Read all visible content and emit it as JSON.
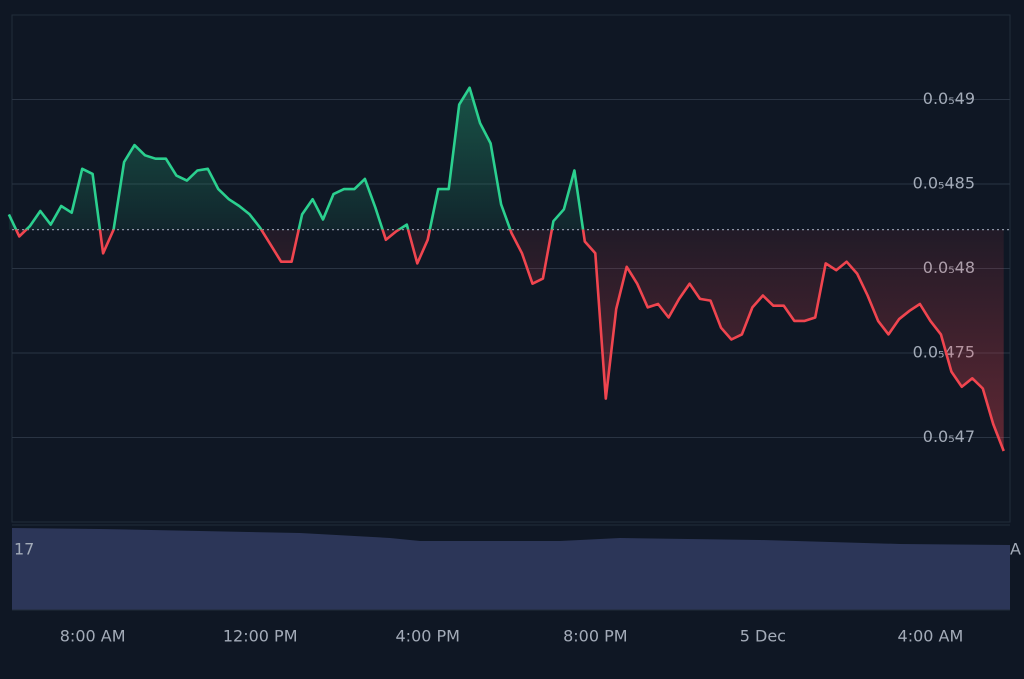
{
  "chart_data": {
    "type": "baseline_line",
    "x": [
      8,
      9,
      10,
      11,
      12,
      13,
      14,
      15,
      16,
      17,
      18,
      19,
      20,
      21,
      22,
      23,
      24,
      25,
      26,
      27,
      28,
      29,
      30,
      31,
      32,
      33,
      34,
      35,
      36,
      37,
      38,
      39,
      40,
      41,
      42,
      43,
      44,
      45,
      46,
      47,
      48,
      49,
      50,
      51,
      52,
      53,
      54,
      55,
      56,
      57,
      58,
      59,
      60,
      61,
      62,
      63,
      64,
      65,
      66,
      67,
      68,
      69,
      70,
      71,
      72,
      73,
      74,
      75,
      76,
      77,
      78,
      79,
      80,
      81,
      82,
      83,
      84,
      85,
      86,
      87,
      88,
      89,
      90,
      91,
      92,
      93,
      94,
      95,
      96,
      97,
      98,
      99,
      100,
      101,
      102,
      103
    ],
    "values": [
      4.832e-06,
      4.819e-06,
      4.825e-06,
      4.834e-06,
      4.826e-06,
      4.837e-06,
      4.833e-06,
      4.859e-06,
      4.856e-06,
      4.809e-06,
      4.823e-06,
      4.863e-06,
      4.873e-06,
      4.867e-06,
      4.865e-06,
      4.865e-06,
      4.855e-06,
      4.852e-06,
      4.858e-06,
      4.859e-06,
      4.847e-06,
      4.841e-06,
      4.837e-06,
      4.832e-06,
      4.824e-06,
      4.814e-06,
      4.804e-06,
      4.804e-06,
      4.832e-06,
      4.841e-06,
      4.829e-06,
      4.844e-06,
      4.847e-06,
      4.847e-06,
      4.853e-06,
      4.836e-06,
      4.817e-06,
      4.822e-06,
      4.826e-06,
      4.803e-06,
      4.817e-06,
      4.847e-06,
      4.847e-06,
      4.897e-06,
      4.907e-06,
      4.886e-06,
      4.874e-06,
      4.838e-06,
      4.821e-06,
      4.809e-06,
      4.791e-06,
      4.794e-06,
      4.828e-06,
      4.835e-06,
      4.858e-06,
      4.816e-06,
      4.809e-06,
      4.723e-06,
      4.776e-06,
      4.801e-06,
      4.791e-06,
      4.777e-06,
      4.779e-06,
      4.771e-06,
      4.782e-06,
      4.791e-06,
      4.782e-06,
      4.781e-06,
      4.765e-06,
      4.758e-06,
      4.761e-06,
      4.777e-06,
      4.784e-06,
      4.778e-06,
      4.778e-06,
      4.769e-06,
      4.769e-06,
      4.771e-06,
      4.803e-06,
      4.799e-06,
      4.804e-06,
      4.797e-06,
      4.784e-06,
      4.769e-06,
      4.761e-06,
      4.77e-06,
      4.775e-06,
      4.779e-06,
      4.769e-06,
      4.761e-06,
      4.739e-06,
      4.73e-06,
      4.735e-06,
      4.729e-06,
      4.708e-06,
      4.692e-06
    ],
    "baseline": 4.823e-06,
    "up_color": "#2bd08f",
    "down_color": "#f0454f",
    "xlim": [
      8.3,
      103.6
    ],
    "xticks": [
      {
        "value": 16,
        "label": "8:00 AM"
      },
      {
        "value": 32,
        "label": "12:00 PM"
      },
      {
        "value": 48,
        "label": "4:00 PM"
      },
      {
        "value": 64,
        "label": "8:00 PM"
      },
      {
        "value": 80,
        "label": "5 Dec"
      },
      {
        "value": 96,
        "label": "4:00 AM"
      }
    ],
    "ylim": [
      4.65e-06,
      4.95e-06
    ],
    "yticks": [
      {
        "value": 4.7e-06,
        "label": "0.0₅47"
      },
      {
        "value": 4.75e-06,
        "label": "0.0₅475"
      },
      {
        "value": 4.8e-06,
        "label": "0.0₅48"
      },
      {
        "value": 4.85e-06,
        "label": "0.0₅485"
      },
      {
        "value": 4.9e-06,
        "label": "0.0₅49"
      }
    ],
    "grid": true,
    "annotations": [
      "17",
      "A"
    ]
  }
}
